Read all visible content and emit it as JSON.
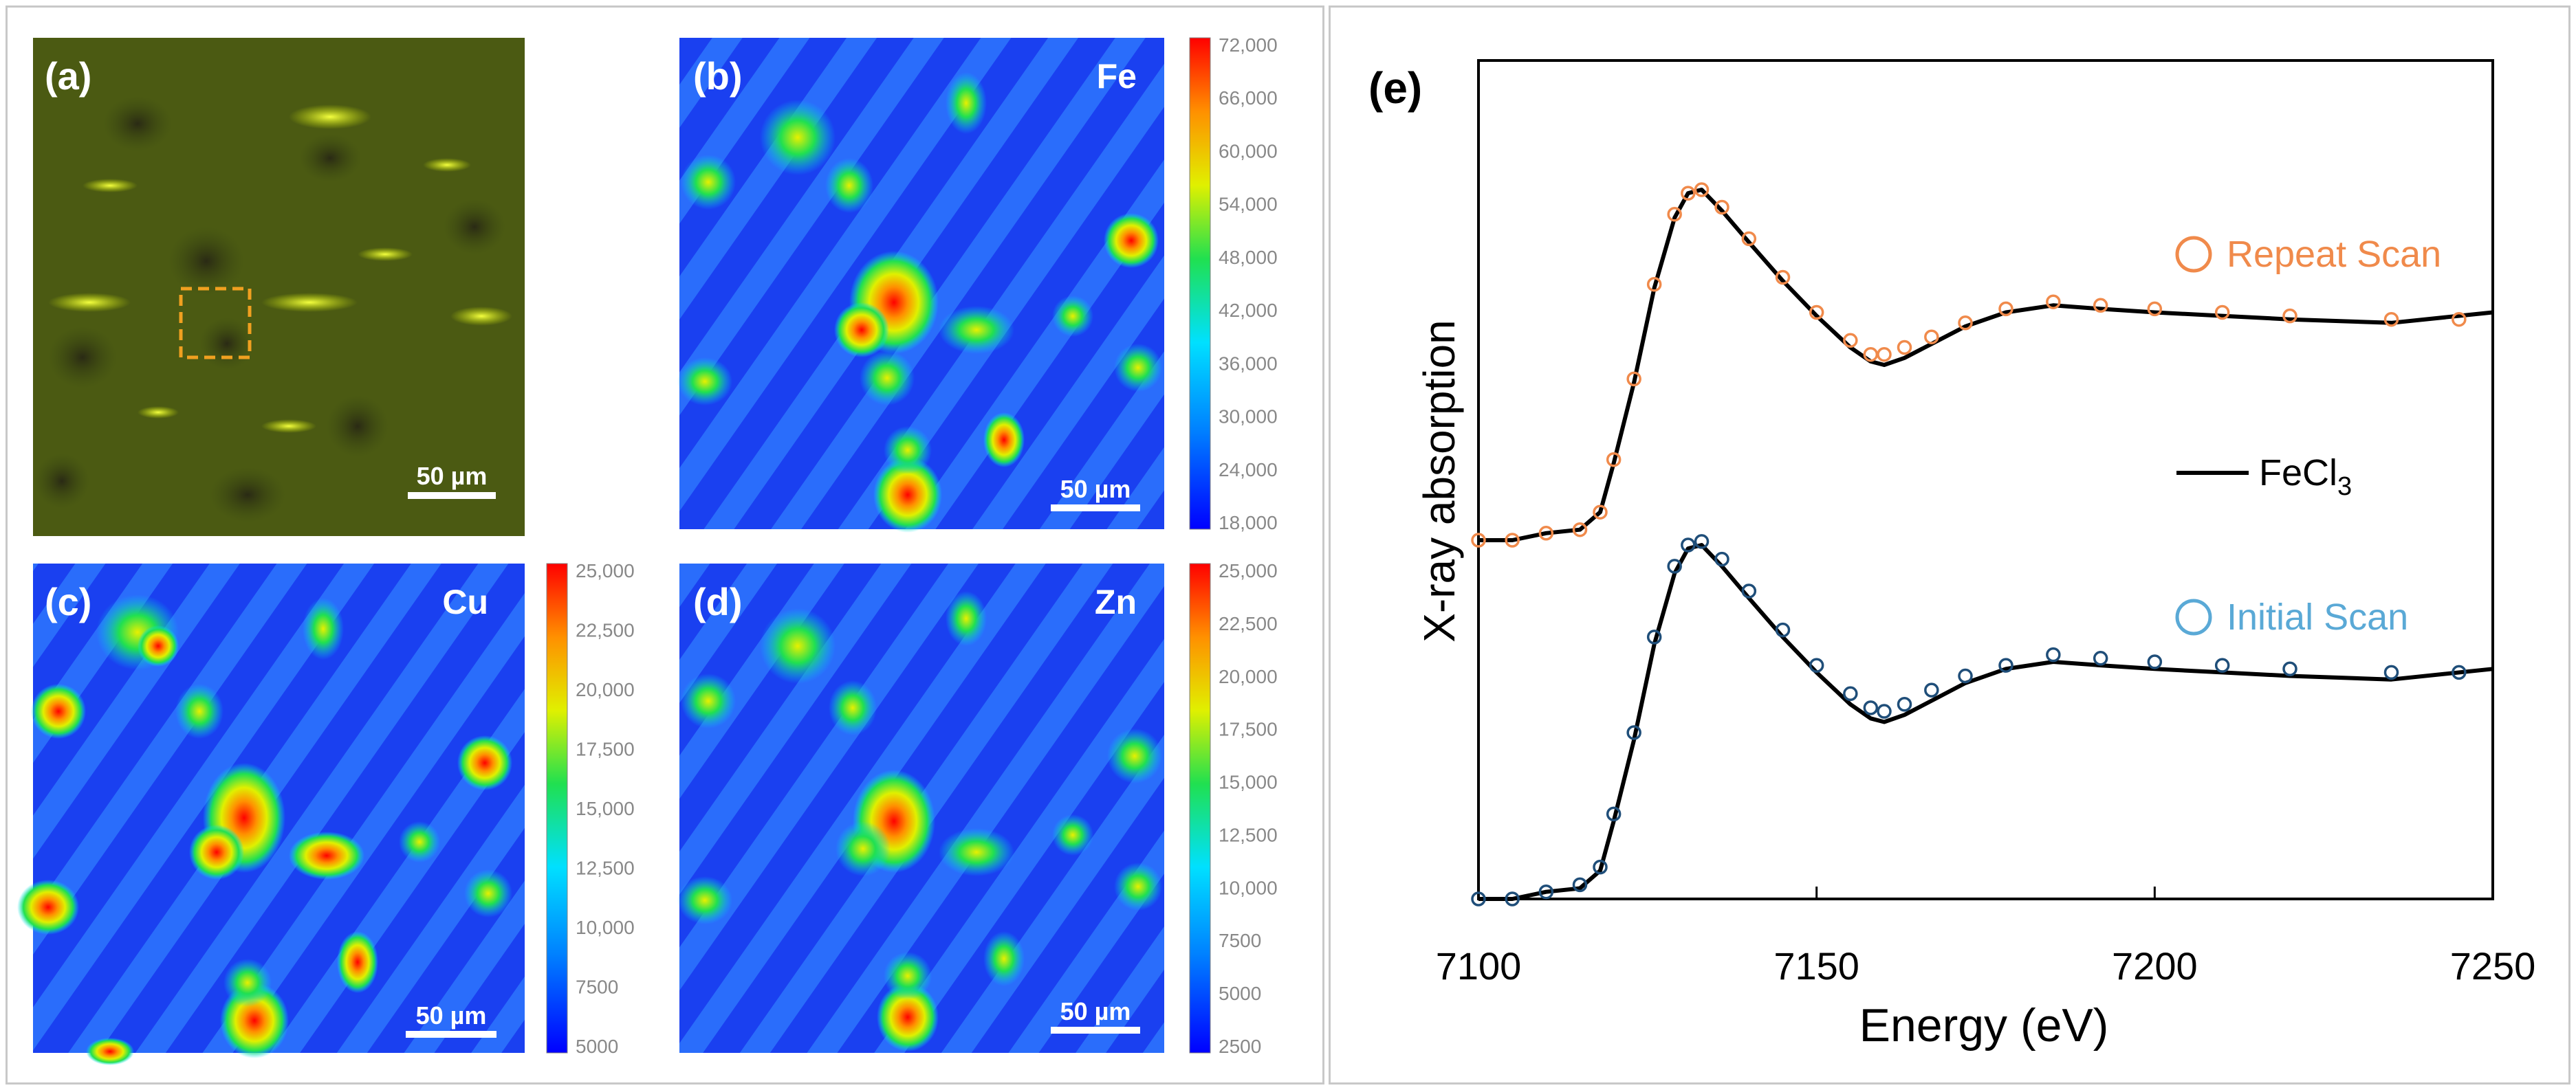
{
  "panels": {
    "a": {
      "label": "(a)",
      "scale_bar": "50 µm"
    },
    "b": {
      "label": "(b)",
      "element": "Fe",
      "scale_bar": "50 µm",
      "colorbar_ticks": [
        "72,000",
        "66,000",
        "60,000",
        "54,000",
        "48,000",
        "42,000",
        "36,000",
        "30,000",
        "24,000",
        "18,000"
      ]
    },
    "c": {
      "label": "(c)",
      "element": "Cu",
      "scale_bar": "50 µm",
      "colorbar_ticks": [
        "25,000",
        "22,500",
        "20,000",
        "17,500",
        "15,000",
        "12,500",
        "10,000",
        "7500",
        "5000"
      ]
    },
    "d": {
      "label": "(d)",
      "element": "Zn",
      "scale_bar": "50 µm",
      "colorbar_ticks": [
        "25,000",
        "22,500",
        "20,000",
        "17,500",
        "15,000",
        "12,500",
        "10,000",
        "7500",
        "5000",
        "2500"
      ]
    },
    "e": {
      "label": "(e)"
    }
  },
  "colors": {
    "repeat": "#f08a4b",
    "initial": "#5aa9d6",
    "initial_line": "#1f4e79",
    "reference": "#000000",
    "map_low": "#0000ff",
    "map_high": "#ff0000"
  },
  "chart_data": {
    "type": "line",
    "title": "",
    "xlabel": "Energy (eV)",
    "ylabel": "X-ray absorption",
    "xlim": [
      7100,
      7250
    ],
    "x_ticks": [
      7100,
      7150,
      7200,
      7250
    ],
    "grid": false,
    "legend": [
      {
        "name": "Repeat Scan",
        "marker": "open-circle"
      },
      {
        "name": "FeCl",
        "subscript": "3",
        "marker": "line"
      },
      {
        "name": "Initial Scan",
        "marker": "open-circle"
      }
    ],
    "series": [
      {
        "name": "FeCl3 (upper)",
        "style": "line",
        "x": [
          7100,
          7105,
          7110,
          7115,
          7118,
          7120,
          7123,
          7126,
          7129,
          7131,
          7133,
          7136,
          7140,
          7145,
          7150,
          7155,
          7158,
          7160,
          7163,
          7167,
          7172,
          7178,
          7185,
          7192,
          7200,
          7210,
          7220,
          7235,
          7250
        ],
        "y": [
          0.0,
          0.0,
          0.02,
          0.03,
          0.08,
          0.22,
          0.45,
          0.72,
          0.92,
          0.99,
          1.0,
          0.94,
          0.85,
          0.74,
          0.64,
          0.55,
          0.51,
          0.5,
          0.52,
          0.56,
          0.61,
          0.65,
          0.67,
          0.66,
          0.65,
          0.64,
          0.63,
          0.62,
          0.65
        ]
      },
      {
        "name": "Repeat Scan",
        "style": "circles",
        "x": [
          7100,
          7105,
          7110,
          7115,
          7118,
          7120,
          7123,
          7126,
          7129,
          7131,
          7133,
          7136,
          7140,
          7145,
          7150,
          7155,
          7158,
          7160,
          7163,
          7167,
          7172,
          7178,
          7185,
          7192,
          7200,
          7210,
          7220,
          7235,
          7245
        ],
        "y": [
          0.0,
          0.0,
          0.02,
          0.03,
          0.08,
          0.23,
          0.46,
          0.73,
          0.93,
          0.99,
          1.0,
          0.95,
          0.86,
          0.75,
          0.65,
          0.57,
          0.53,
          0.53,
          0.55,
          0.58,
          0.62,
          0.66,
          0.68,
          0.67,
          0.66,
          0.65,
          0.64,
          0.63,
          0.63
        ]
      },
      {
        "name": "FeCl3 (lower)",
        "style": "line",
        "x": [
          7100,
          7105,
          7110,
          7115,
          7118,
          7120,
          7123,
          7126,
          7129,
          7131,
          7133,
          7136,
          7140,
          7145,
          7150,
          7155,
          7158,
          7160,
          7163,
          7167,
          7172,
          7178,
          7185,
          7192,
          7200,
          7210,
          7220,
          7235,
          7250
        ],
        "y": [
          0.0,
          0.0,
          0.02,
          0.03,
          0.08,
          0.22,
          0.45,
          0.72,
          0.92,
          0.99,
          1.0,
          0.94,
          0.85,
          0.74,
          0.64,
          0.55,
          0.51,
          0.5,
          0.52,
          0.56,
          0.61,
          0.65,
          0.67,
          0.66,
          0.65,
          0.64,
          0.63,
          0.62,
          0.65
        ]
      },
      {
        "name": "Initial Scan",
        "style": "circles",
        "x": [
          7100,
          7105,
          7110,
          7115,
          7118,
          7120,
          7123,
          7126,
          7129,
          7131,
          7133,
          7136,
          7140,
          7145,
          7150,
          7155,
          7158,
          7160,
          7163,
          7167,
          7172,
          7178,
          7185,
          7192,
          7200,
          7210,
          7220,
          7235,
          7245
        ],
        "y": [
          0.0,
          0.0,
          0.02,
          0.04,
          0.09,
          0.24,
          0.47,
          0.74,
          0.94,
          1.0,
          1.01,
          0.96,
          0.87,
          0.76,
          0.66,
          0.58,
          0.54,
          0.53,
          0.55,
          0.59,
          0.63,
          0.66,
          0.69,
          0.68,
          0.67,
          0.66,
          0.65,
          0.64,
          0.64
        ]
      }
    ]
  }
}
